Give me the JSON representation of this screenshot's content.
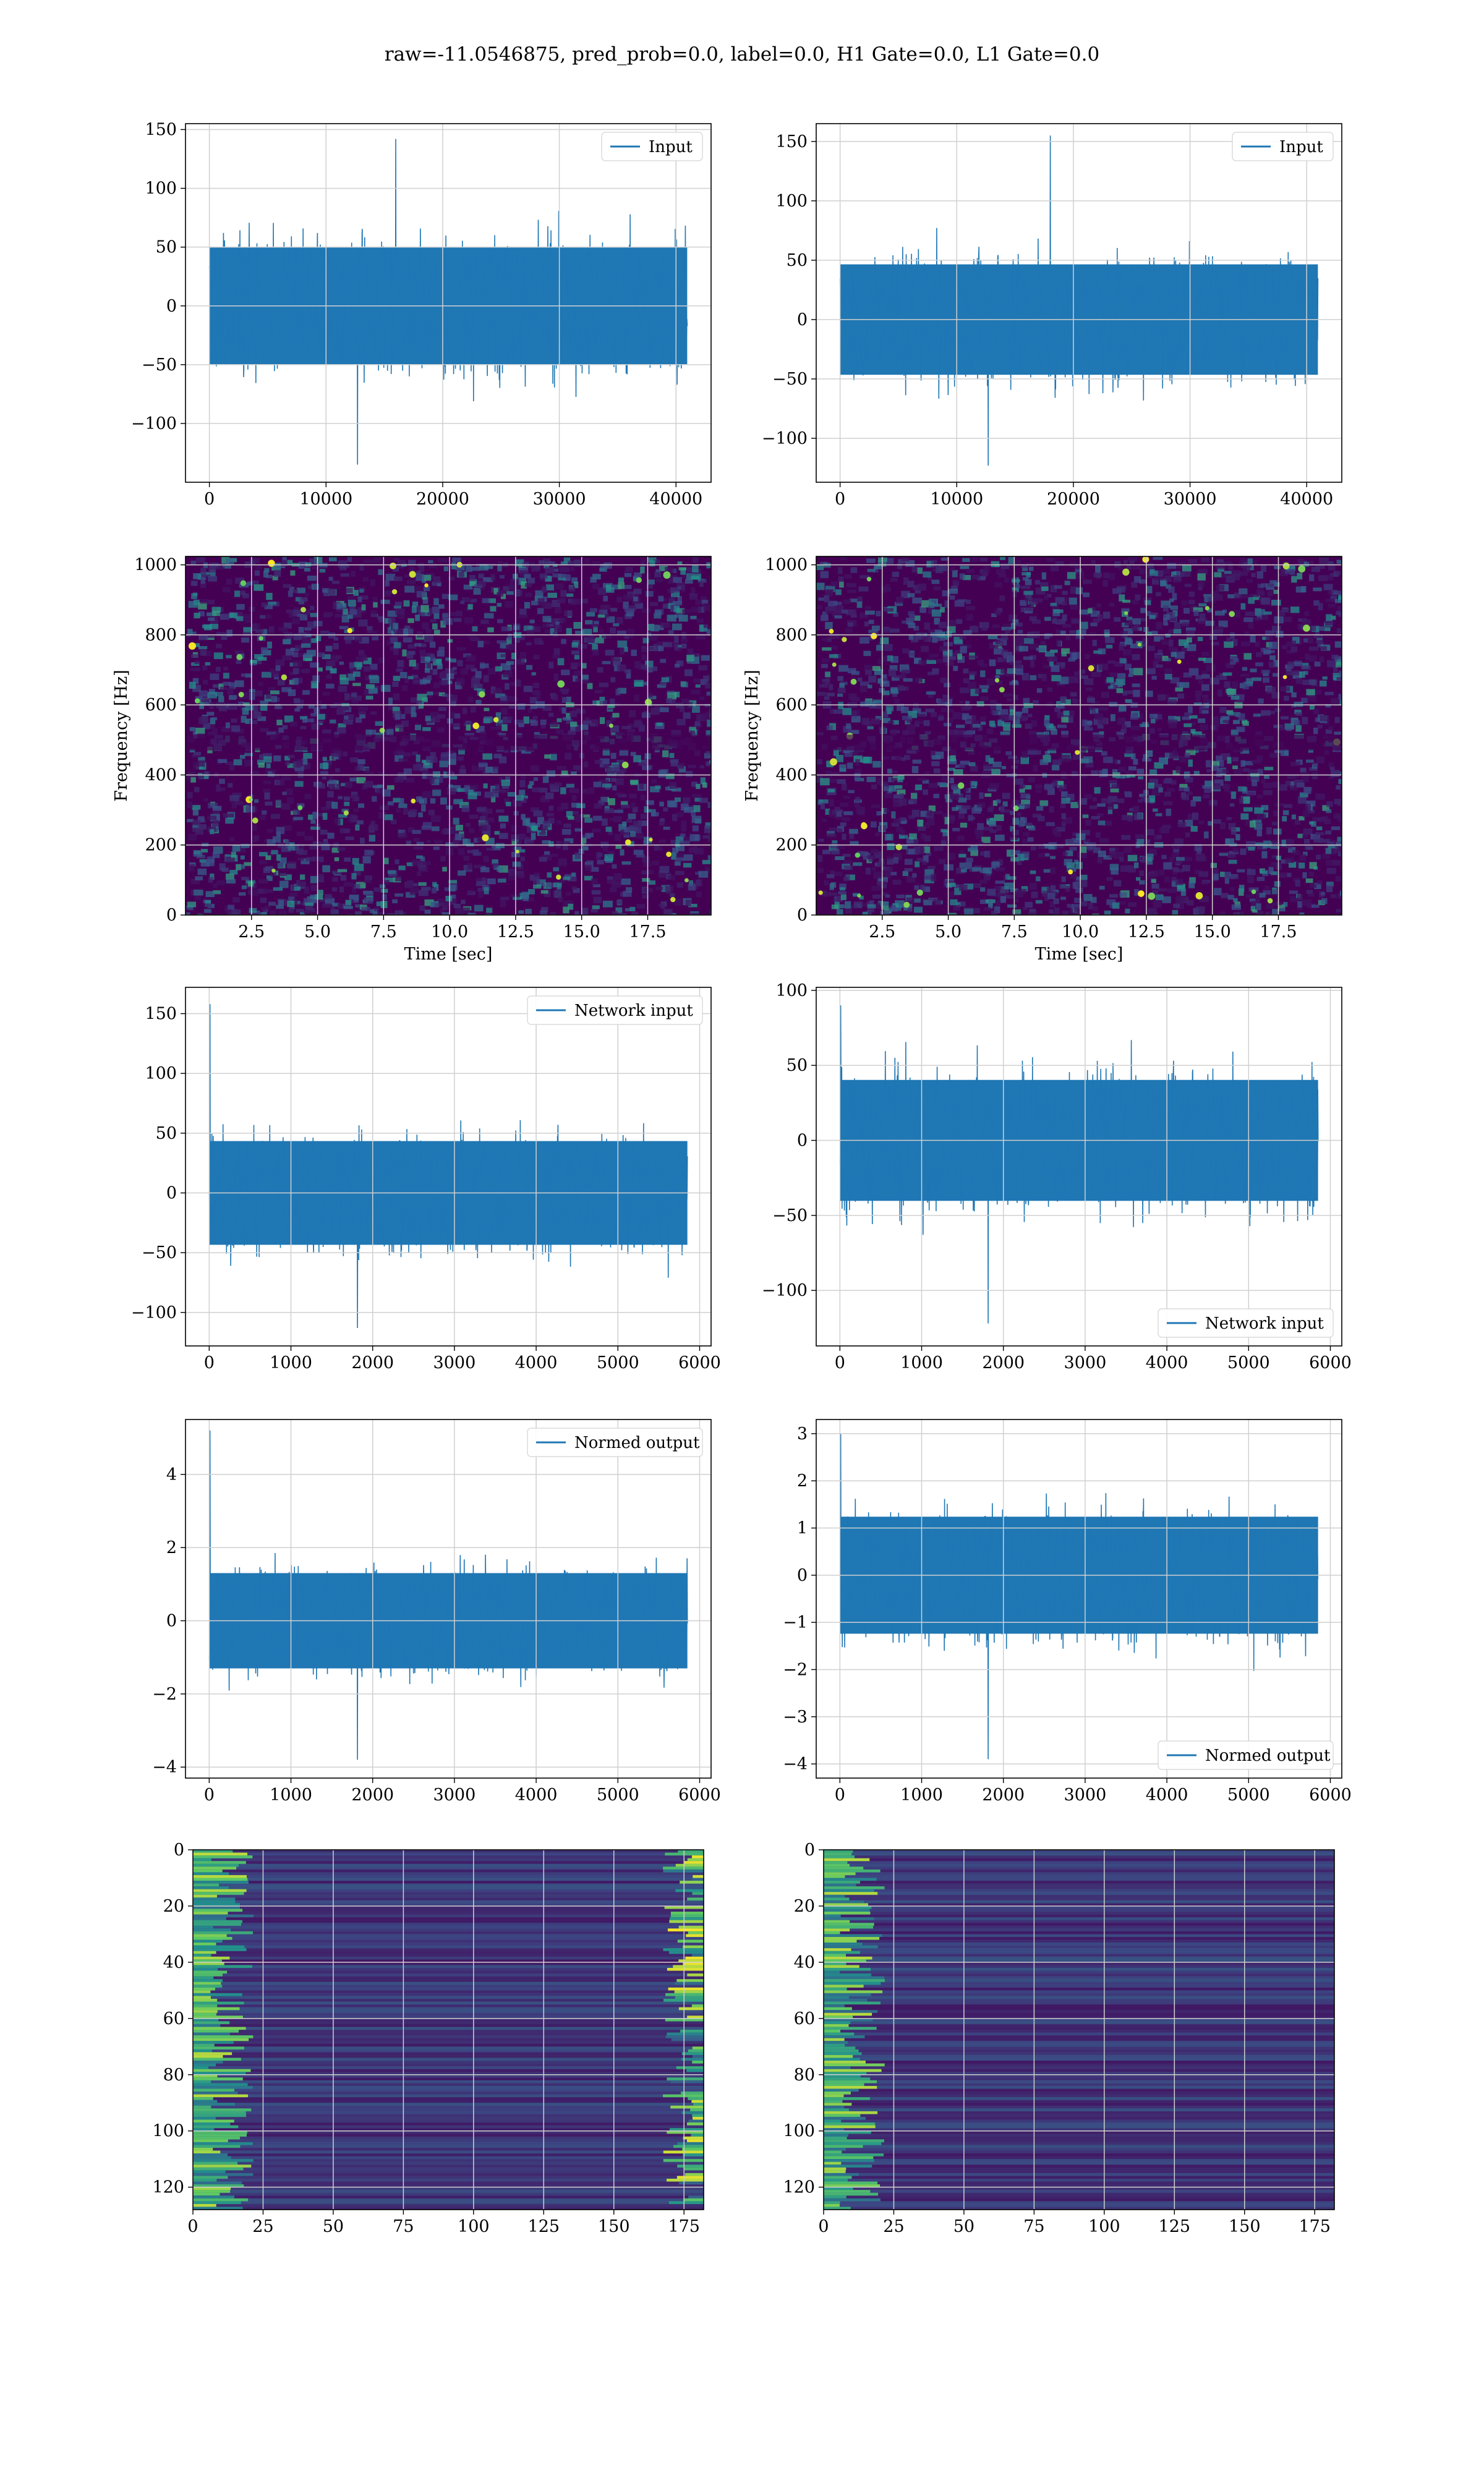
{
  "figure": {
    "title": "raw=-11.0546875, pred_prob=0.0, label=0.0, H1 Gate=0.0, L1 Gate=0.0",
    "colors": {
      "line": "#1f77b4",
      "grid": "#d0d0d0",
      "viridis_low": "#440154",
      "viridis_high": "#fde725"
    }
  },
  "chart_data": [
    {
      "type": "line",
      "id": "row1-left",
      "series": [
        {
          "name": "Input",
          "envelope": {
            "x_end": 40960,
            "typical_amplitude": 80,
            "peak": 142,
            "trough": -135
          }
        }
      ],
      "xlim": [
        -2048,
        43008
      ],
      "ylim": [
        -150,
        155
      ],
      "xticks": [
        0,
        10000,
        20000,
        30000,
        40000
      ],
      "xtick_labels": [
        "0",
        "10000",
        "20000",
        "30000",
        "40000"
      ],
      "yticks": [
        -100,
        -50,
        0,
        50,
        100,
        150
      ],
      "ytick_labels": [
        "−100",
        "−50",
        "0",
        "50",
        "100",
        "150"
      ],
      "legend": "top-right",
      "xlabel": "",
      "ylabel": "",
      "grid": true
    },
    {
      "type": "line",
      "id": "row1-right",
      "series": [
        {
          "name": "Input",
          "envelope": {
            "x_end": 40960,
            "typical_amplitude": 75,
            "peak": 155,
            "trough": -123
          }
        }
      ],
      "xlim": [
        -2048,
        43008
      ],
      "ylim": [
        -137,
        165
      ],
      "xticks": [
        0,
        10000,
        20000,
        30000,
        40000
      ],
      "xtick_labels": [
        "0",
        "10000",
        "20000",
        "30000",
        "40000"
      ],
      "yticks": [
        -100,
        -50,
        0,
        50,
        100,
        150
      ],
      "ytick_labels": [
        "−100",
        "−50",
        "0",
        "50",
        "100",
        "150"
      ],
      "legend": "top-right",
      "xlabel": "",
      "ylabel": "",
      "grid": true
    },
    {
      "type": "heatmap",
      "id": "row2-left",
      "xlim": [
        0,
        19.9
      ],
      "ylim": [
        0,
        1024
      ],
      "xticks": [
        2.5,
        5.0,
        7.5,
        10.0,
        12.5,
        15.0,
        17.5
      ],
      "xtick_labels": [
        "2.5",
        "5.0",
        "7.5",
        "10.0",
        "12.5",
        "15.0",
        "17.5"
      ],
      "yticks": [
        0,
        200,
        400,
        600,
        800,
        1000
      ],
      "ytick_labels": [
        "0",
        "200",
        "400",
        "600",
        "800",
        "1000"
      ],
      "xlabel": "Time [sec]",
      "ylabel": "Frequency [Hz]",
      "colormap": "viridis",
      "grid": true
    },
    {
      "type": "heatmap",
      "id": "row2-right",
      "xlim": [
        0,
        19.9
      ],
      "ylim": [
        0,
        1024
      ],
      "xticks": [
        2.5,
        5.0,
        7.5,
        10.0,
        12.5,
        15.0,
        17.5
      ],
      "xtick_labels": [
        "2.5",
        "5.0",
        "7.5",
        "10.0",
        "12.5",
        "15.0",
        "17.5"
      ],
      "yticks": [
        0,
        200,
        400,
        600,
        800,
        1000
      ],
      "ytick_labels": [
        "0",
        "200",
        "400",
        "600",
        "800",
        "1000"
      ],
      "xlabel": "Time [sec]",
      "ylabel": "Frequency [Hz]",
      "colormap": "viridis",
      "grid": true
    },
    {
      "type": "line",
      "id": "row3-left",
      "series": [
        {
          "name": "Network input",
          "envelope": {
            "x_end": 5850,
            "typical_amplitude": 70,
            "peak": 158,
            "trough": -113
          }
        }
      ],
      "xlim": [
        -290,
        6140
      ],
      "ylim": [
        -128,
        172
      ],
      "xticks": [
        0,
        1000,
        2000,
        3000,
        4000,
        5000,
        6000
      ],
      "xtick_labels": [
        "0",
        "1000",
        "2000",
        "3000",
        "4000",
        "5000",
        "6000"
      ],
      "yticks": [
        -100,
        -50,
        0,
        50,
        100,
        150
      ],
      "ytick_labels": [
        "−100",
        "−50",
        "0",
        "50",
        "100",
        "150"
      ],
      "legend": "top-right",
      "xlabel": "",
      "ylabel": "",
      "grid": true
    },
    {
      "type": "line",
      "id": "row3-right",
      "series": [
        {
          "name": "Network input",
          "envelope": {
            "x_end": 5850,
            "typical_amplitude": 65,
            "peak": 90,
            "trough": -122
          }
        }
      ],
      "xlim": [
        -290,
        6140
      ],
      "ylim": [
        -137,
        102
      ],
      "xticks": [
        0,
        1000,
        2000,
        3000,
        4000,
        5000,
        6000
      ],
      "xtick_labels": [
        "0",
        "1000",
        "2000",
        "3000",
        "4000",
        "5000",
        "6000"
      ],
      "yticks": [
        -100,
        -50,
        0,
        50,
        100
      ],
      "ytick_labels": [
        "−100",
        "−50",
        "0",
        "50",
        "100"
      ],
      "legend": "bottom-right",
      "xlabel": "",
      "ylabel": "",
      "grid": true
    },
    {
      "type": "line",
      "id": "row4-left",
      "series": [
        {
          "name": "Normed output",
          "envelope": {
            "x_end": 5850,
            "typical_amplitude": 2.1,
            "peak": 5.2,
            "trough": -3.8
          }
        }
      ],
      "xlim": [
        -290,
        6140
      ],
      "ylim": [
        -4.3,
        5.5
      ],
      "xticks": [
        0,
        1000,
        2000,
        3000,
        4000,
        5000,
        6000
      ],
      "xtick_labels": [
        "0",
        "1000",
        "2000",
        "3000",
        "4000",
        "5000",
        "6000"
      ],
      "yticks": [
        -4,
        -2,
        0,
        2,
        4
      ],
      "ytick_labels": [
        "−4",
        "−2",
        "0",
        "2",
        "4"
      ],
      "legend": "top-right",
      "xlabel": "",
      "ylabel": "",
      "grid": true
    },
    {
      "type": "line",
      "id": "row4-right",
      "series": [
        {
          "name": "Normed output",
          "envelope": {
            "x_end": 5850,
            "typical_amplitude": 2.0,
            "peak": 3.0,
            "trough": -3.9
          }
        }
      ],
      "xlim": [
        -290,
        6140
      ],
      "ylim": [
        -4.3,
        3.3
      ],
      "xticks": [
        0,
        1000,
        2000,
        3000,
        4000,
        5000,
        6000
      ],
      "xtick_labels": [
        "0",
        "1000",
        "2000",
        "3000",
        "4000",
        "5000",
        "6000"
      ],
      "yticks": [
        -4,
        -3,
        -2,
        -1,
        0,
        1,
        2,
        3
      ],
      "ytick_labels": [
        "−4",
        "−3",
        "−2",
        "−1",
        "0",
        "1",
        "2",
        "3"
      ],
      "legend": "bottom-right",
      "xlabel": "",
      "ylabel": "",
      "grid": true
    },
    {
      "type": "heatmap",
      "id": "row5-left",
      "xlim": [
        0,
        182
      ],
      "ylim": [
        128,
        0
      ],
      "xticks": [
        0,
        25,
        50,
        75,
        100,
        125,
        150,
        175
      ],
      "xtick_labels": [
        "0",
        "25",
        "50",
        "75",
        "100",
        "125",
        "150",
        "175"
      ],
      "yticks": [
        0,
        20,
        40,
        60,
        80,
        100,
        120
      ],
      "ytick_labels": [
        "0",
        "20",
        "40",
        "60",
        "80",
        "100",
        "120"
      ],
      "xlabel": "",
      "ylabel": "",
      "colormap": "viridis",
      "grid": true,
      "bright_edges": [
        "left",
        "right"
      ]
    },
    {
      "type": "heatmap",
      "id": "row5-right",
      "xlim": [
        0,
        182
      ],
      "ylim": [
        128,
        0
      ],
      "xticks": [
        0,
        25,
        50,
        75,
        100,
        125,
        150,
        175
      ],
      "xtick_labels": [
        "0",
        "25",
        "50",
        "75",
        "100",
        "125",
        "150",
        "175"
      ],
      "yticks": [
        0,
        20,
        40,
        60,
        80,
        100,
        120
      ],
      "ytick_labels": [
        "0",
        "20",
        "40",
        "60",
        "80",
        "100",
        "120"
      ],
      "xlabel": "",
      "ylabel": "",
      "colormap": "viridis",
      "grid": true,
      "bright_edges": [
        "left"
      ]
    }
  ]
}
